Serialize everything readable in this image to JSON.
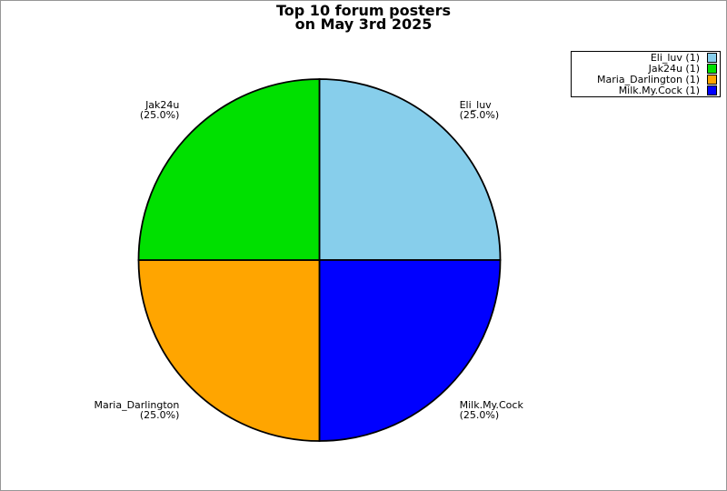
{
  "frame": {
    "background_color": "#ffffff",
    "border_color": "#969696"
  },
  "title": {
    "line1": "Top 10 forum posters",
    "line2": "on May 3rd 2025"
  },
  "legend": {
    "position": "top-right",
    "items": [
      {
        "label": "Eli_luv (1)",
        "color": "#87ceeb"
      },
      {
        "label": "Jak24u (1)",
        "color": "#00e000"
      },
      {
        "label": "Maria_Darlington (1)",
        "color": "#ffa500"
      },
      {
        "label": "Milk.My.Cock (1)",
        "color": "#0000ff"
      }
    ]
  },
  "chart_data": {
    "type": "pie",
    "title": "Top 10 forum posters on May 3rd 2025",
    "start_angle": "top",
    "direction": "clockwise",
    "outline_color": "#000000",
    "legend_position": "top-right",
    "slices": [
      {
        "label": "Eli_luv",
        "value": 1,
        "percent": 25.0,
        "pct_label": "(25.0%)",
        "color": "#87ceeb"
      },
      {
        "label": "Milk.My.Cock",
        "value": 1,
        "percent": 25.0,
        "pct_label": "(25.0%)",
        "color": "#0000ff"
      },
      {
        "label": "Maria_Darlington",
        "value": 1,
        "percent": 25.0,
        "pct_label": "(25.0%)",
        "color": "#ffa500"
      },
      {
        "label": "Jak24u",
        "value": 1,
        "percent": 25.0,
        "pct_label": "(25.0%)",
        "color": "#00e000"
      }
    ]
  }
}
